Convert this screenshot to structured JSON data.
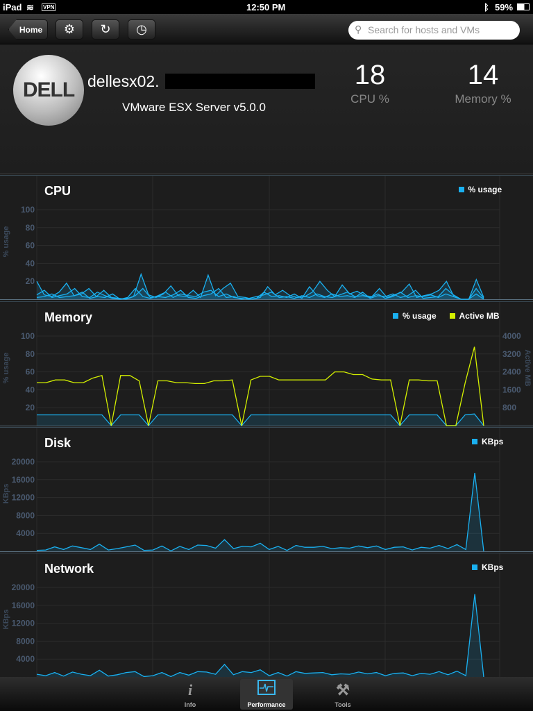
{
  "status": {
    "device": "iPad",
    "vpn": "VPN",
    "time": "12:50 PM",
    "battery": "59%"
  },
  "nav": {
    "home": "Home",
    "search_placeholder": "Search for hosts and VMs"
  },
  "host": {
    "logo_text": "DELL",
    "name": "dellesx02.",
    "server": "VMware ESX Server  v5.0.0",
    "cpu_value": "18",
    "cpu_label": "CPU %",
    "mem_value": "14",
    "mem_label": "Memory %"
  },
  "tabs": [
    {
      "label": "Info",
      "icon": "info-icon"
    },
    {
      "label": "Performance",
      "icon": "performance-icon",
      "selected": true
    },
    {
      "label": "Tools",
      "icon": "tools-icon"
    }
  ],
  "chart_data": [
    {
      "type": "area",
      "title": "CPU",
      "ylabel": "% usage",
      "yticks": [
        20,
        40,
        60,
        80,
        100
      ],
      "ylim": [
        0,
        100
      ],
      "series": [
        {
          "name": "% usage",
          "color": "#1ab0f0",
          "values": [
            20,
            5,
            3,
            8,
            18,
            4,
            6,
            12,
            3,
            10,
            2,
            1,
            0,
            3,
            28,
            5,
            2,
            6,
            15,
            4,
            3,
            10,
            2,
            27,
            4,
            12,
            18,
            3,
            2,
            0,
            2,
            14,
            5,
            10,
            4,
            2,
            3,
            8,
            20,
            10,
            3,
            16,
            6,
            9,
            4,
            3,
            12,
            2,
            5,
            8,
            17,
            2,
            4,
            6,
            10,
            20,
            3,
            0,
            0,
            22,
            2
          ]
        },
        {
          "color": "#1ab0f0",
          "values": [
            5,
            10,
            2,
            4,
            6,
            12,
            3,
            2,
            8,
            4,
            1,
            0,
            2,
            12,
            3,
            1,
            4,
            8,
            2,
            6,
            4,
            3,
            8,
            10,
            3,
            6,
            2,
            1,
            0,
            1,
            8,
            3,
            4,
            2,
            6,
            1,
            14,
            4,
            2,
            6,
            3,
            4,
            2,
            8,
            1,
            4,
            3,
            6,
            2,
            4,
            10,
            1,
            2,
            3,
            12,
            5,
            0,
            0,
            12,
            1
          ]
        },
        {
          "color": "#1ab0f0",
          "values": [
            2,
            3,
            6,
            2,
            3,
            4,
            8,
            1,
            3,
            2,
            6,
            0,
            1,
            4,
            12,
            2,
            3,
            2,
            5,
            10,
            2,
            1,
            4,
            6,
            12,
            2,
            3,
            0,
            1,
            3,
            5,
            8,
            2,
            3,
            1,
            4,
            2,
            6,
            3,
            2,
            5,
            8,
            3,
            4,
            2,
            6,
            1,
            3,
            8,
            2,
            4,
            3,
            5,
            2,
            6,
            3,
            0,
            0,
            6,
            0
          ]
        }
      ]
    },
    {
      "type": "line",
      "title": "Memory",
      "ylabel": "% usage",
      "yticks": [
        20,
        40,
        60,
        80,
        100
      ],
      "ylim": [
        0,
        100
      ],
      "y2label": "Active MB",
      "y2ticks": [
        800,
        1600,
        2400,
        3200,
        4000
      ],
      "y2lim": [
        0,
        4000
      ],
      "series": [
        {
          "name": "% usage",
          "color": "#1ab0f0",
          "axis": "left",
          "values": [
            12,
            12,
            12,
            12,
            12,
            12,
            12,
            12,
            0,
            12,
            12,
            12,
            0,
            12,
            12,
            12,
            12,
            12,
            12,
            12,
            12,
            12,
            0,
            12,
            12,
            12,
            12,
            12,
            12,
            12,
            12,
            12,
            12,
            12,
            12,
            12,
            12,
            12,
            12,
            0,
            12,
            12,
            12,
            12,
            0,
            0,
            12,
            13,
            0
          ]
        },
        {
          "name": "Active MB",
          "color": "#d4f000",
          "axis": "right",
          "values": [
            1920,
            1920,
            2040,
            2040,
            1920,
            1920,
            2120,
            2240,
            0,
            2240,
            2240,
            2000,
            0,
            2000,
            2000,
            1920,
            1920,
            1880,
            1880,
            2000,
            2000,
            2040,
            0,
            2040,
            2200,
            2200,
            2040,
            2040,
            2040,
            2040,
            2040,
            2040,
            2400,
            2400,
            2280,
            2280,
            2080,
            2040,
            2040,
            0,
            2040,
            2040,
            2000,
            2000,
            0,
            0,
            1900,
            3520,
            0
          ]
        }
      ]
    },
    {
      "type": "line",
      "title": "Disk",
      "ylabel": "KBps",
      "yticks": [
        4000,
        8000,
        12000,
        16000,
        20000
      ],
      "ylim": [
        0,
        20000
      ],
      "series": [
        {
          "name": "KBps",
          "color": "#1ab0f0",
          "values": [
            200,
            300,
            1000,
            400,
            1200,
            800,
            400,
            1600,
            300,
            600,
            1000,
            1400,
            200,
            300,
            1200,
            100,
            1100,
            400,
            1400,
            1300,
            700,
            2600,
            600,
            1100,
            1000,
            1800,
            400,
            1100,
            200,
            1300,
            900,
            900,
            1100,
            600,
            800,
            700,
            1200,
            800,
            1200,
            400,
            900,
            1000,
            300,
            900,
            700,
            1300,
            600,
            1500,
            400,
            17500,
            0
          ]
        }
      ]
    },
    {
      "type": "line",
      "title": "Network",
      "ylabel": "KBps",
      "yticks": [
        4000,
        8000,
        12000,
        16000,
        20000
      ],
      "ylim": [
        0,
        20000
      ],
      "series": [
        {
          "name": "KBps",
          "color": "#1ab0f0",
          "values": [
            600,
            300,
            1000,
            200,
            1100,
            600,
            300,
            1500,
            200,
            500,
            1000,
            1200,
            100,
            300,
            1000,
            100,
            1000,
            400,
            1200,
            1100,
            600,
            2800,
            500,
            1200,
            1000,
            1600,
            300,
            1000,
            200,
            1200,
            800,
            900,
            1000,
            500,
            700,
            600,
            1100,
            700,
            1000,
            300,
            800,
            900,
            300,
            800,
            600,
            1200,
            500,
            1300,
            300,
            18500,
            0
          ]
        }
      ]
    }
  ]
}
